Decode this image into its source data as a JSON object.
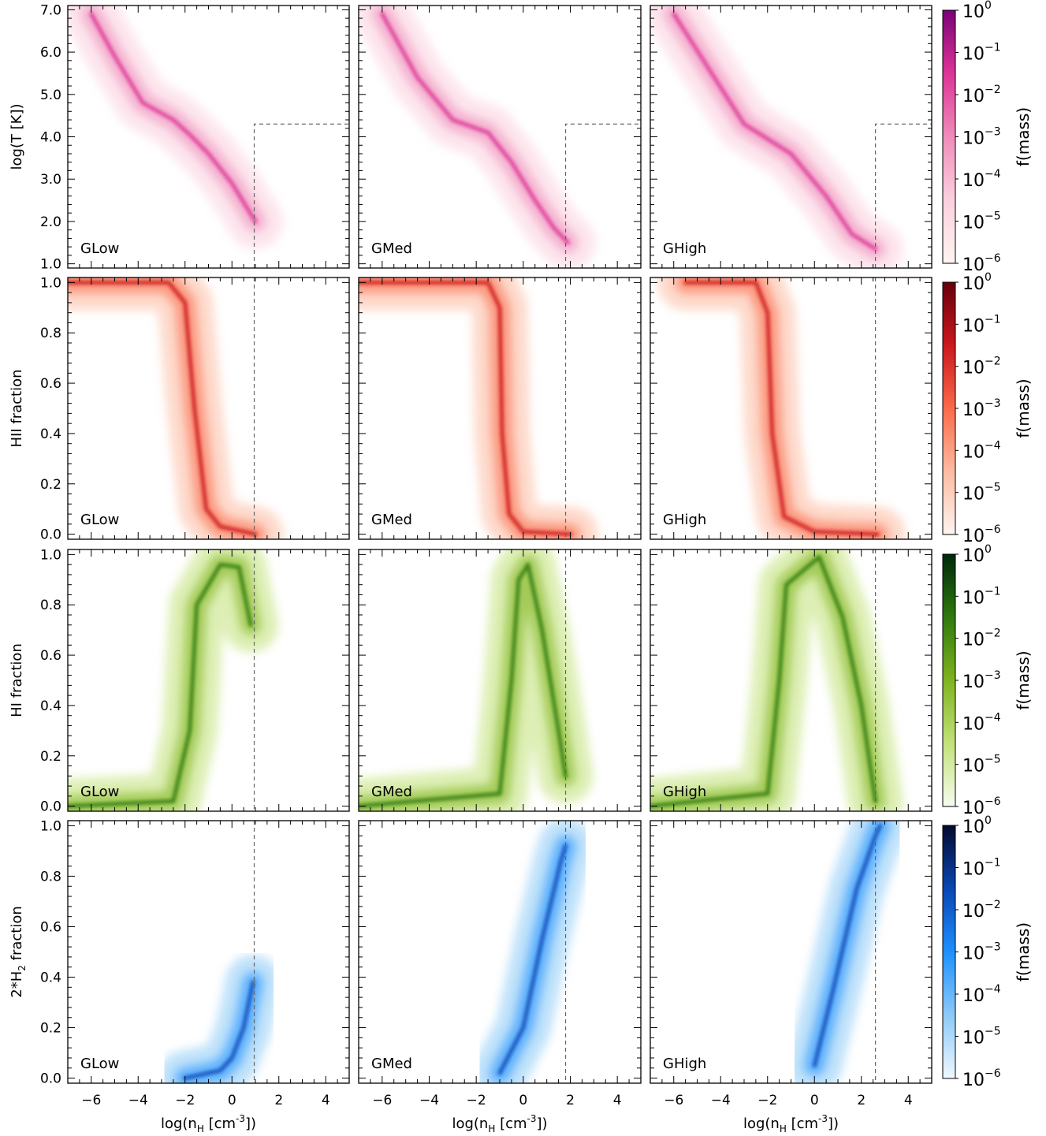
{
  "figure": {
    "rows": [
      {
        "key": "temp",
        "ylabel": "log(T [K])",
        "yticks": [
          "1.0",
          "2.0",
          "3.0",
          "4.0",
          "5.0",
          "6.0",
          "7.0"
        ],
        "colorbar_label": "f(mass)",
        "cmap": [
          "#fff5f0",
          "#fbd0df",
          "#f08cba",
          "#dd3497",
          "#7a0177"
        ]
      },
      {
        "key": "hii",
        "ylabel": "HII fraction",
        "yticks": [
          "0.0",
          "0.2",
          "0.4",
          "0.6",
          "0.8",
          "1.0"
        ],
        "colorbar_label": "f(mass)",
        "cmap": [
          "#fff5f0",
          "#fcbba1",
          "#fb6a4a",
          "#cb181d",
          "#67000d"
        ]
      },
      {
        "key": "hi",
        "ylabel": "HI fraction",
        "yticks": [
          "0.0",
          "0.2",
          "0.4",
          "0.6",
          "0.8",
          "1.0"
        ],
        "colorbar_label": "f(mass)",
        "cmap": [
          "#f7fcf0",
          "#c2e27a",
          "#7fb41f",
          "#2f7a0e",
          "#00280a"
        ]
      },
      {
        "key": "h2",
        "ylabel_main": "2*H",
        "ylabel_sub": "2",
        "ylabel_tail": " fraction",
        "yticks": [
          "0.0",
          "0.2",
          "0.4",
          "0.6",
          "0.8",
          "1.0"
        ],
        "colorbar_label": "f(mass)",
        "cmap": [
          "#f0f8ff",
          "#8ccaf7",
          "#1e90ff",
          "#0a46b4",
          "#020b2c"
        ]
      }
    ],
    "panel_labels": [
      "GLow",
      "GMed",
      "GHigh"
    ],
    "xticks": [
      "-6",
      "-4",
      "-2",
      "0",
      "2",
      "4"
    ],
    "xlabel_main": "log(n",
    "xlabel_sub": "H",
    "xlabel_mid": " [cm",
    "xlabel_sup": "-3",
    "xlabel_tail": "])",
    "colorbar_ticks": [
      {
        "base": "10",
        "exp": "0"
      },
      {
        "base": "10",
        "exp": "-1"
      },
      {
        "base": "10",
        "exp": "-2"
      },
      {
        "base": "10",
        "exp": "-3"
      },
      {
        "base": "10",
        "exp": "-4"
      },
      {
        "base": "10",
        "exp": "-5"
      },
      {
        "base": "10",
        "exp": "-6"
      }
    ]
  },
  "chart_data": {
    "type": "heatmap",
    "xlim": [
      -7,
      5
    ],
    "x_scale": "log10 hydrogen number density",
    "colorbar_range": [
      1e-06,
      1
    ],
    "colorbar_scale": "log",
    "threshold_density": {
      "GLow": 0.95,
      "GMed": 1.8,
      "GHigh": 2.6
    },
    "threshold_temperature_log": 4.3,
    "rows": [
      {
        "quantity": "temperature",
        "ylim": [
          0.9,
          7.1
        ]
      },
      {
        "quantity": "HII fraction",
        "ylim": [
          -0.02,
          1.02
        ]
      },
      {
        "quantity": "HI fraction",
        "ylim": [
          -0.02,
          1.02
        ]
      },
      {
        "quantity": "H2 fraction",
        "ylim": [
          -0.02,
          1.02
        ]
      }
    ],
    "ridges": {
      "temp": {
        "GLow": [
          [
            -6.0,
            6.9
          ],
          [
            -5.0,
            5.9
          ],
          [
            -3.8,
            4.8
          ],
          [
            -2.5,
            4.4
          ],
          [
            -1.8,
            4.05
          ],
          [
            -1.0,
            3.6
          ],
          [
            0.0,
            2.9
          ],
          [
            1.0,
            2.0
          ]
        ],
        "GMed": [
          [
            -6.0,
            6.9
          ],
          [
            -4.5,
            5.4
          ],
          [
            -3.0,
            4.4
          ],
          [
            -1.5,
            4.1
          ],
          [
            -0.5,
            3.4
          ],
          [
            0.5,
            2.5
          ],
          [
            1.3,
            1.85
          ],
          [
            1.9,
            1.5
          ]
        ],
        "GHigh": [
          [
            -6.0,
            6.9
          ],
          [
            -4.5,
            5.6
          ],
          [
            -3.0,
            4.3
          ],
          [
            -1.0,
            3.6
          ],
          [
            0.5,
            2.6
          ],
          [
            1.6,
            1.7
          ],
          [
            2.6,
            1.35
          ]
        ]
      },
      "hii": {
        "GLow": [
          [
            -7.0,
            1.0
          ],
          [
            -2.7,
            1.0
          ],
          [
            -2.0,
            0.92
          ],
          [
            -1.6,
            0.5
          ],
          [
            -1.1,
            0.1
          ],
          [
            -0.5,
            0.03
          ],
          [
            1.0,
            0.0
          ]
        ],
        "GMed": [
          [
            -7.0,
            1.0
          ],
          [
            -1.5,
            1.0
          ],
          [
            -1.0,
            0.9
          ],
          [
            -0.9,
            0.4
          ],
          [
            -0.6,
            0.08
          ],
          [
            0.0,
            0.01
          ],
          [
            2.0,
            0.0
          ]
        ],
        "GHigh": [
          [
            -5.5,
            1.0
          ],
          [
            -2.5,
            1.0
          ],
          [
            -2.0,
            0.88
          ],
          [
            -1.8,
            0.4
          ],
          [
            -1.3,
            0.07
          ],
          [
            0.0,
            0.01
          ],
          [
            2.7,
            0.0
          ]
        ]
      },
      "hi": {
        "GLow": [
          [
            -7.0,
            0.0
          ],
          [
            -2.5,
            0.02
          ],
          [
            -1.8,
            0.3
          ],
          [
            -1.5,
            0.8
          ],
          [
            -0.5,
            0.96
          ],
          [
            0.3,
            0.95
          ],
          [
            0.8,
            0.72
          ]
        ],
        "GMed": [
          [
            -7.0,
            0.0
          ],
          [
            -1.0,
            0.05
          ],
          [
            -0.5,
            0.5
          ],
          [
            -0.2,
            0.9
          ],
          [
            0.2,
            0.96
          ],
          [
            0.8,
            0.7
          ],
          [
            1.5,
            0.3
          ],
          [
            1.8,
            0.12
          ]
        ],
        "GHigh": [
          [
            -7.0,
            0.0
          ],
          [
            -2.0,
            0.05
          ],
          [
            -1.5,
            0.5
          ],
          [
            -1.2,
            0.88
          ],
          [
            0.2,
            0.99
          ],
          [
            1.2,
            0.75
          ],
          [
            2.0,
            0.4
          ],
          [
            2.6,
            0.02
          ]
        ]
      },
      "h2": {
        "GLow": [
          [
            -2.0,
            0.0
          ],
          [
            -0.5,
            0.03
          ],
          [
            0.0,
            0.08
          ],
          [
            0.5,
            0.2
          ],
          [
            0.9,
            0.38
          ]
        ],
        "GMed": [
          [
            -1.0,
            0.02
          ],
          [
            0.0,
            0.2
          ],
          [
            0.8,
            0.55
          ],
          [
            1.6,
            0.86
          ],
          [
            1.8,
            0.92
          ]
        ],
        "GHigh": [
          [
            0.0,
            0.05
          ],
          [
            0.8,
            0.35
          ],
          [
            1.8,
            0.75
          ],
          [
            2.6,
            0.96
          ],
          [
            2.8,
            1.0
          ]
        ]
      }
    }
  }
}
